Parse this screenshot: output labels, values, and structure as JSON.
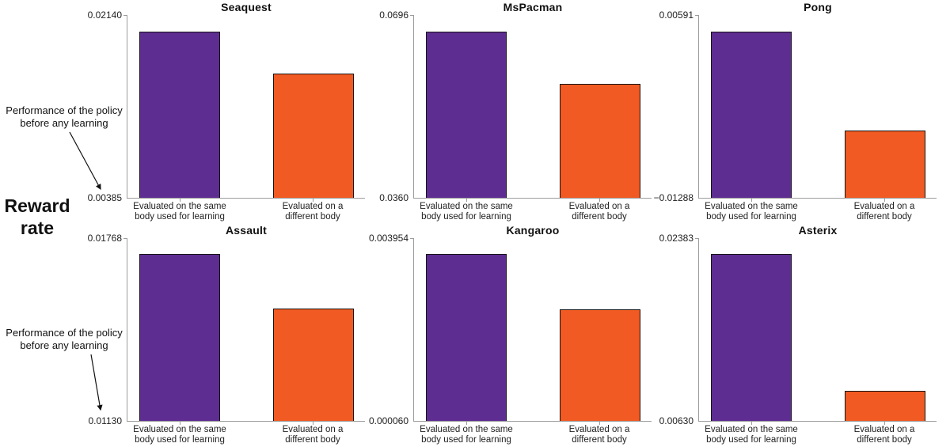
{
  "figure": {
    "ylabel_line1": "Reward",
    "ylabel_line2": "rate",
    "annotations": {
      "top": {
        "line1": "Performance of the policy",
        "line2": "before any learning"
      },
      "bottom": {
        "line1": "Performance of the policy",
        "line2": "before any learning"
      }
    },
    "colors": {
      "same_body_bar": "#5E2D91",
      "different_body_bar": "#F15A22",
      "axis_line": "#9c9c9c",
      "bar_edge": "#141414"
    }
  },
  "chart_data": [
    {
      "type": "bar",
      "title": "Seaquest",
      "ylim": [
        0.00385,
        0.0214
      ],
      "ytick_labels": {
        "max": "0.02140",
        "min": "0.00385"
      },
      "categories": [
        [
          "Evaluated on the same",
          "body used for learning"
        ],
        [
          "Evaluated on a",
          "different body"
        ]
      ],
      "series": [
        {
          "name": "Evaluated on the same body used for learning",
          "value": 0.0198
        },
        {
          "name": "Evaluated on a different body",
          "value": 0.0158
        }
      ]
    },
    {
      "type": "bar",
      "title": "MsPacman",
      "ylim": [
        0.036,
        0.0696
      ],
      "ytick_labels": {
        "max": "0.0696",
        "min": "0.0360"
      },
      "categories": [
        [
          "Evaluated on the same",
          "body used for learning"
        ],
        [
          "Evaluated on a",
          "different body"
        ]
      ],
      "series": [
        {
          "name": "Evaluated on the same body used for learning",
          "value": 0.0666
        },
        {
          "name": "Evaluated on a different body",
          "value": 0.0569
        }
      ]
    },
    {
      "type": "bar",
      "title": "Pong",
      "ylim": [
        -0.01288,
        0.00591
      ],
      "ytick_labels": {
        "max": "0.00591",
        "min": "−0.01288"
      },
      "categories": [
        [
          "Evaluated on the same",
          "body used for learning"
        ],
        [
          "Evaluated on a",
          "different body"
        ]
      ],
      "series": [
        {
          "name": "Evaluated on the same body used for learning",
          "value": 0.0042
        },
        {
          "name": "Evaluated on a different body",
          "value": -0.006
        }
      ]
    },
    {
      "type": "bar",
      "title": "Assault",
      "ylim": [
        0.0113,
        0.01768
      ],
      "ytick_labels": {
        "max": "0.01768",
        "min": "0.01130"
      },
      "categories": [
        [
          "Evaluated on the same",
          "body used for learning"
        ],
        [
          "Evaluated on a",
          "different body"
        ]
      ],
      "series": [
        {
          "name": "Evaluated on the same body used for learning",
          "value": 0.01713
        },
        {
          "name": "Evaluated on a different body",
          "value": 0.01522
        }
      ]
    },
    {
      "type": "bar",
      "title": "Kangaroo",
      "ylim": [
        6e-05,
        0.003954
      ],
      "ytick_labels": {
        "max": "0.003954",
        "min": "0.000060"
      },
      "categories": [
        [
          "Evaluated on the same",
          "body used for learning"
        ],
        [
          "Evaluated on a",
          "different body"
        ]
      ],
      "series": [
        {
          "name": "Evaluated on the same body used for learning",
          "value": 0.00362
        },
        {
          "name": "Evaluated on a different body",
          "value": 0.00243
        }
      ]
    },
    {
      "type": "bar",
      "title": "Asterix",
      "ylim": [
        0.0063,
        0.02383
      ],
      "ytick_labels": {
        "max": "0.02383",
        "min": "0.00630"
      },
      "categories": [
        [
          "Evaluated on the same",
          "body used for learning"
        ],
        [
          "Evaluated on a",
          "different body"
        ]
      ],
      "series": [
        {
          "name": "Evaluated on the same body used for learning",
          "value": 0.0223
        },
        {
          "name": "Evaluated on a different body",
          "value": 0.0092
        }
      ]
    }
  ]
}
